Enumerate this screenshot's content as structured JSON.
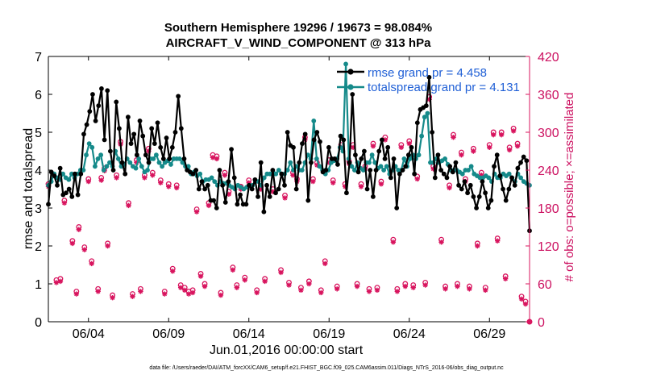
{
  "chart_data": {
    "type": "line",
    "title_line1": "Southern Hemisphere 19296 / 19673 = 98.084%",
    "title_line2": "AIRCRAFT_V_WIND_COMPONENT @ 313 hPa",
    "xlabel": "Jun.01,2016 00:00:00 start",
    "ylabel_left": "rmse and totalspread",
    "ylabel_right": "# of obs: o=possible; ×=assimilated",
    "footer": "data file: /Users/raeder/DAI/ATM_forcXX/CAM6_setup/f.e21.FHIST_BGC.f09_025.CAM6assim.011/Diags_NTrS_2016-06/obs_diag_output.nc",
    "x_range_days": [
      0.5,
      30.5
    ],
    "ylim_left": [
      0,
      7
    ],
    "ylim_right": [
      0,
      420
    ],
    "left_ticks": [
      "0",
      "1",
      "2",
      "3",
      "4",
      "5",
      "6",
      "7"
    ],
    "right_ticks": [
      "0",
      "60",
      "120",
      "180",
      "240",
      "300",
      "360",
      "420"
    ],
    "x_ticks": [
      {
        "day": 3,
        "label": "06/04"
      },
      {
        "day": 8,
        "label": "06/09"
      },
      {
        "day": 13,
        "label": "06/14"
      },
      {
        "day": 18,
        "label": "06/19"
      },
      {
        "day": 23,
        "label": "06/24"
      },
      {
        "day": 28,
        "label": "06/29"
      }
    ],
    "colors": {
      "rmse": "#000000",
      "spread": "#158a8a",
      "obs": "#d8145e",
      "legend_text": "#1f5fd6"
    },
    "series": [
      {
        "name": "rmse grand pr = 4.458",
        "values": [
          3.1,
          3.95,
          3.85,
          3.6,
          4.05,
          3.35,
          3.4,
          3.5,
          3.3,
          3.9,
          3.35,
          3.9,
          4.95,
          5.2,
          5.55,
          6.0,
          5.3,
          5.7,
          6.15,
          4.8,
          6.1,
          4.5,
          4.0,
          5.8,
          5.1,
          4.2,
          3.9,
          5.4,
          4.7,
          4.95,
          4.4,
          5.3,
          4.9,
          4.4,
          4.2,
          5.1,
          4.7,
          5.25,
          4.6,
          4.3,
          4.85,
          4.3,
          4.6,
          5.0,
          5.95,
          5.1,
          4.3,
          4.0,
          3.95,
          3.9,
          4.0,
          3.5,
          3.7,
          3.5,
          3.6,
          3.2,
          3.2,
          3.0,
          4.0,
          3.6,
          3.15,
          3.7,
          4.55,
          3.8,
          3.1,
          3.35,
          3.1,
          3.1,
          3.6,
          3.5,
          3.75,
          3.3,
          4.2,
          2.9,
          3.6,
          3.3,
          4.0,
          3.4,
          3.5,
          3.9,
          3.6,
          5.0,
          4.65,
          4.6,
          3.5,
          4.2,
          4.7,
          4.95,
          3.2,
          4.2,
          4.8,
          5.0,
          4.75,
          3.95,
          4.0,
          4.6,
          4.3,
          4.3,
          4.15,
          4.9,
          4.8,
          3.4,
          4.2,
          6.0,
          4.4,
          3.95,
          4.3,
          4.5,
          3.5,
          4.0,
          3.3,
          4.0,
          4.5,
          4.8,
          4.3,
          4.6,
          3.8,
          4.3,
          3.0,
          3.9,
          4.0,
          4.1,
          4.4,
          4.6,
          3.9,
          5.25,
          5.6,
          5.65,
          5.7,
          6.45,
          5.0,
          3.8,
          4.4,
          4.0,
          3.9,
          3.8,
          4.1,
          3.95,
          4.2,
          3.6,
          3.5,
          3.7,
          3.4,
          3.6,
          3.3,
          3.0,
          3.3,
          3.7,
          3.4,
          3.0,
          3.2,
          4.1,
          4.4,
          3.85,
          3.5,
          3.2,
          3.5,
          3.8,
          3.6,
          4.05,
          4.2,
          4.35,
          4.25,
          2.4
        ],
        "grand": 4.458
      },
      {
        "name": "totalspread grand pr = 4.131",
        "values": [
          3.6,
          3.7,
          3.9,
          3.8,
          3.75,
          3.9,
          3.8,
          3.75,
          3.9,
          3.8,
          3.9,
          4.0,
          4.0,
          4.4,
          4.7,
          4.6,
          4.1,
          4.3,
          4.4,
          4.0,
          4.1,
          4.2,
          4.1,
          4.5,
          4.3,
          4.1,
          4.15,
          4.3,
          4.2,
          4.1,
          4.05,
          4.3,
          4.1,
          3.95,
          4.0,
          4.3,
          4.3,
          4.4,
          4.2,
          4.1,
          4.2,
          4.25,
          4.15,
          4.3,
          4.3,
          4.3,
          4.2,
          4.1,
          4.1,
          3.9,
          3.95,
          3.85,
          3.9,
          3.7,
          3.75,
          3.75,
          3.8,
          3.7,
          3.6,
          3.7,
          3.65,
          3.65,
          3.6,
          3.55,
          3.5,
          3.6,
          3.55,
          3.5,
          3.55,
          3.6,
          3.6,
          3.7,
          3.7,
          3.6,
          3.8,
          3.9,
          3.9,
          3.95,
          3.9,
          4.0,
          3.9,
          3.9,
          4.0,
          4.2,
          4.0,
          4.1,
          4.0,
          4.0,
          4.2,
          4.4,
          4.3,
          5.3,
          4.3,
          4.1,
          4.0,
          3.9,
          4.0,
          4.2,
          4.25,
          4.3,
          4.6,
          4.5,
          6.8,
          4.3,
          4.1,
          4.0,
          4.2,
          4.05,
          4.0,
          4.2,
          4.2,
          4.4,
          4.2,
          4.05,
          4.1,
          4.0,
          4.1,
          3.9,
          4.0,
          4.1,
          4.0,
          4.0,
          4.3,
          4.1,
          4.3,
          4.4,
          4.3,
          4.4,
          4.9,
          5.4,
          5.5,
          4.2,
          4.2,
          4.3,
          4.2,
          4.25,
          4.3,
          4.15,
          4.0,
          4.0,
          4.0,
          3.95,
          3.9,
          4.0,
          4.0,
          4.1,
          3.9,
          3.85,
          3.8,
          3.8,
          3.85,
          3.8,
          3.7,
          3.9,
          3.8,
          3.8,
          3.9,
          3.85,
          3.9,
          3.8,
          3.7,
          3.9,
          3.8,
          3.7,
          3.65,
          3.6
        ],
        "grand": 4.131
      }
    ],
    "obs_points": [
      {
        "day": 0.5,
        "possible": 218
      },
      {
        "day": 1.0,
        "possible": 66
      },
      {
        "day": 1.25,
        "possible": 68
      },
      {
        "day": 1.5,
        "possible": 192
      },
      {
        "day": 2.0,
        "possible": 128
      },
      {
        "day": 2.25,
        "possible": 48
      },
      {
        "day": 2.4,
        "possible": 150
      },
      {
        "day": 2.75,
        "possible": 118
      },
      {
        "day": 3.0,
        "possible": 226
      },
      {
        "day": 3.2,
        "possible": 96
      },
      {
        "day": 3.6,
        "possible": 52
      },
      {
        "day": 3.8,
        "possible": 228
      },
      {
        "day": 4.0,
        "possible": 243
      },
      {
        "day": 4.2,
        "possible": 124
      },
      {
        "day": 4.5,
        "possible": 42
      },
      {
        "day": 4.75,
        "possible": 232
      },
      {
        "day": 5.0,
        "possible": 285
      },
      {
        "day": 5.5,
        "possible": 188
      },
      {
        "day": 5.75,
        "possible": 44
      },
      {
        "day": 6.0,
        "possible": 256
      },
      {
        "day": 6.25,
        "possible": 52
      },
      {
        "day": 6.5,
        "possible": 232
      },
      {
        "day": 6.75,
        "possible": 274
      },
      {
        "day": 7.0,
        "possible": 236
      },
      {
        "day": 7.5,
        "possible": 224
      },
      {
        "day": 7.75,
        "possible": 48
      },
      {
        "day": 8.0,
        "possible": 218
      },
      {
        "day": 8.25,
        "possible": 84
      },
      {
        "day": 8.5,
        "possible": 216
      },
      {
        "day": 8.75,
        "possible": 58
      },
      {
        "day": 9.0,
        "possible": 54
      },
      {
        "day": 9.25,
        "possible": 48
      },
      {
        "day": 9.5,
        "possible": 50
      },
      {
        "day": 9.75,
        "possible": 178
      },
      {
        "day": 10.0,
        "possible": 76
      },
      {
        "day": 10.25,
        "possible": 60
      },
      {
        "day": 10.5,
        "possible": 188
      },
      {
        "day": 10.75,
        "possible": 264
      },
      {
        "day": 11.0,
        "possible": 262
      },
      {
        "day": 11.25,
        "possible": 46
      },
      {
        "day": 11.5,
        "possible": 236
      },
      {
        "day": 11.75,
        "possible": 206
      },
      {
        "day": 12.0,
        "possible": 86
      },
      {
        "day": 12.25,
        "possible": 58
      },
      {
        "day": 12.5,
        "possible": 214
      },
      {
        "day": 12.75,
        "possible": 70
      },
      {
        "day": 13.0,
        "possible": 224
      },
      {
        "day": 13.5,
        "possible": 50
      },
      {
        "day": 13.75,
        "possible": 214
      },
      {
        "day": 14.0,
        "possible": 68
      },
      {
        "day": 14.5,
        "possible": 210
      },
      {
        "day": 15.0,
        "possible": 82
      },
      {
        "day": 15.25,
        "possible": 200
      },
      {
        "day": 15.5,
        "possible": 62
      },
      {
        "day": 15.75,
        "possible": 236
      },
      {
        "day": 16.0,
        "possible": 226
      },
      {
        "day": 16.25,
        "possible": 54
      },
      {
        "day": 16.5,
        "possible": 292
      },
      {
        "day": 16.75,
        "possible": 64
      },
      {
        "day": 17.0,
        "possible": 226
      },
      {
        "day": 17.25,
        "possible": 252
      },
      {
        "day": 17.5,
        "possible": 50
      },
      {
        "day": 17.75,
        "possible": 96
      },
      {
        "day": 18.0,
        "possible": 256
      },
      {
        "day": 18.25,
        "possible": 224
      },
      {
        "day": 18.5,
        "possible": 56
      },
      {
        "day": 18.75,
        "possible": 280
      },
      {
        "day": 19.0,
        "possible": 218
      },
      {
        "day": 19.25,
        "possible": 254
      },
      {
        "day": 19.5,
        "possible": 280
      },
      {
        "day": 19.75,
        "possible": 60
      },
      {
        "day": 20.0,
        "possible": 218
      },
      {
        "day": 20.25,
        "possible": 246
      },
      {
        "day": 20.5,
        "possible": 52
      },
      {
        "day": 20.75,
        "possible": 282
      },
      {
        "day": 21.0,
        "possible": 54
      },
      {
        "day": 21.25,
        "possible": 222
      },
      {
        "day": 21.5,
        "possible": 292
      },
      {
        "day": 22.0,
        "possible": 130
      },
      {
        "day": 22.25,
        "possible": 52
      },
      {
        "day": 22.5,
        "possible": 280
      },
      {
        "day": 22.75,
        "possible": 60
      },
      {
        "day": 23.0,
        "possible": 286
      },
      {
        "day": 23.25,
        "possible": 58
      },
      {
        "day": 23.5,
        "possible": 230
      },
      {
        "day": 24.0,
        "possible": 62
      },
      {
        "day": 24.25,
        "possible": 356
      },
      {
        "day": 24.5,
        "possible": 246
      },
      {
        "day": 25.0,
        "possible": 130
      },
      {
        "day": 25.25,
        "possible": 56
      },
      {
        "day": 25.5,
        "possible": 216
      },
      {
        "day": 25.75,
        "possible": 296
      },
      {
        "day": 26.0,
        "possible": 60
      },
      {
        "day": 26.25,
        "possible": 268
      },
      {
        "day": 26.5,
        "possible": 226
      },
      {
        "day": 26.75,
        "possible": 56
      },
      {
        "day": 27.0,
        "possible": 274
      },
      {
        "day": 27.25,
        "possible": 124
      },
      {
        "day": 27.5,
        "possible": 236
      },
      {
        "day": 27.75,
        "possible": 54
      },
      {
        "day": 28.0,
        "possible": 280
      },
      {
        "day": 28.25,
        "possible": 300
      },
      {
        "day": 28.5,
        "possible": 132
      },
      {
        "day": 28.75,
        "possible": 300
      },
      {
        "day": 29.0,
        "possible": 72
      },
      {
        "day": 29.25,
        "possible": 276
      },
      {
        "day": 29.5,
        "possible": 306
      },
      {
        "day": 29.75,
        "possible": 282
      },
      {
        "day": 30.0,
        "possible": 40
      },
      {
        "day": 30.25,
        "possible": 32
      },
      {
        "day": 30.5,
        "possible": 0
      }
    ]
  }
}
